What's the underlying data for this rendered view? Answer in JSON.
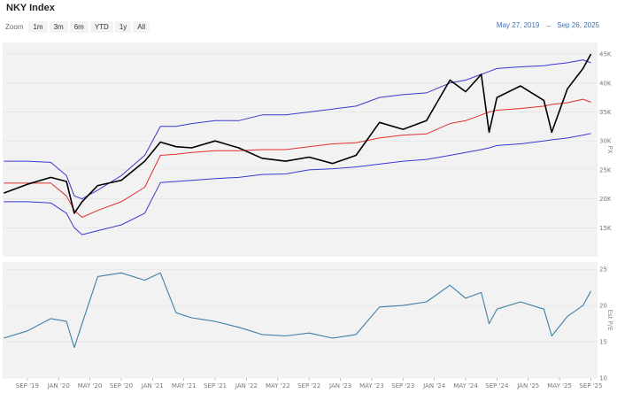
{
  "header": {
    "title": "NKY Index",
    "zoom_label": "Zoom",
    "zoom_buttons": [
      "1m",
      "3m",
      "6m",
      "YTD",
      "1y",
      "All"
    ],
    "range_start": "May 27, 2019",
    "range_arrow": "→",
    "range_end": "Sep 26, 2025"
  },
  "colors": {
    "price": "#000000",
    "median": "#e03030",
    "bands": "#3a3ad0",
    "pe": "#3d7fa6",
    "panel_bg": "#f2f2f2",
    "grid": "#e2e2e2"
  },
  "chart_data": [
    {
      "type": "line",
      "ylabel": "PX",
      "yticks": [
        "15K",
        "20K",
        "25K",
        "30K",
        "35K",
        "40K",
        "45K"
      ],
      "ylim": [
        10000,
        47000
      ],
      "x": [
        "2019-06",
        "2019-09",
        "2019-12",
        "2020-02",
        "2020-03",
        "2020-04",
        "2020-06",
        "2020-09",
        "2020-12",
        "2021-02",
        "2021-04",
        "2021-06",
        "2021-09",
        "2021-12",
        "2022-03",
        "2022-06",
        "2022-09",
        "2022-12",
        "2023-03",
        "2023-06",
        "2023-09",
        "2023-12",
        "2024-03",
        "2024-05",
        "2024-07",
        "2024-08",
        "2024-09",
        "2024-12",
        "2025-03",
        "2025-04",
        "2025-06",
        "2025-08",
        "2025-09"
      ],
      "series": [
        {
          "values": [
            21000,
            22500,
            23700,
            23000,
            17500,
            19500,
            22300,
            23200,
            26500,
            29800,
            29000,
            28800,
            30000,
            28800,
            27000,
            26500,
            27200,
            26100,
            27500,
            33200,
            32000,
            33500,
            40500,
            38500,
            41500,
            31500,
            37500,
            39500,
            37000,
            31500,
            39000,
            42500,
            45000
          ]
        },
        {
          "values": [
            22700,
            22700,
            22700,
            20500,
            18000,
            16800,
            18000,
            19500,
            22000,
            27500,
            27700,
            28000,
            28300,
            28300,
            28500,
            28500,
            29000,
            29500,
            29700,
            30500,
            31000,
            31200,
            33000,
            33500,
            34500,
            35000,
            35300,
            35600,
            36000,
            36300,
            36600,
            37200,
            36700
          ]
        },
        {
          "values": [
            26500,
            26500,
            26300,
            24000,
            20500,
            20000,
            21500,
            24000,
            27500,
            32500,
            32500,
            33000,
            33500,
            33500,
            34500,
            34500,
            35000,
            35500,
            36000,
            37500,
            38000,
            38300,
            40000,
            40500,
            41500,
            42000,
            42500,
            42800,
            43000,
            43200,
            43500,
            44000,
            43500
          ]
        },
        {
          "values": [
            19500,
            19500,
            19300,
            17500,
            15000,
            13800,
            14500,
            15500,
            17500,
            22800,
            23000,
            23200,
            23500,
            23700,
            24200,
            24300,
            25000,
            25200,
            25500,
            26000,
            26500,
            26800,
            27500,
            28000,
            28500,
            28800,
            29200,
            29500,
            30000,
            30200,
            30500,
            31000,
            31300
          ]
        }
      ]
    },
    {
      "type": "line",
      "ylabel": "Est P/E",
      "yticks": [
        "10",
        "15",
        "20",
        "25"
      ],
      "ylim": [
        10,
        26
      ],
      "xticks": [
        "SEP '19",
        "JAN '20",
        "MAY '20",
        "SEP '20",
        "JAN '21",
        "MAY '21",
        "SEP '21",
        "JAN '22",
        "MAY '22",
        "SEP '22",
        "JAN '23",
        "MAY '23",
        "SEP '23",
        "JAN '24",
        "MAY '24",
        "SEP '24",
        "JAN '25",
        "MAY '25",
        "SEP '25"
      ],
      "x": [
        "2019-06",
        "2019-09",
        "2019-12",
        "2020-02",
        "2020-03",
        "2020-04",
        "2020-06",
        "2020-09",
        "2020-12",
        "2021-02",
        "2021-04",
        "2021-06",
        "2021-09",
        "2021-12",
        "2022-03",
        "2022-06",
        "2022-09",
        "2022-12",
        "2023-03",
        "2023-06",
        "2023-09",
        "2023-12",
        "2024-03",
        "2024-05",
        "2024-07",
        "2024-08",
        "2024-09",
        "2024-12",
        "2025-03",
        "2025-04",
        "2025-06",
        "2025-08",
        "2025-09"
      ],
      "series": [
        {
          "values": [
            15.5,
            16.5,
            18.2,
            17.8,
            14.2,
            17.5,
            24.0,
            24.5,
            23.5,
            24.5,
            19.0,
            18.3,
            17.8,
            17.0,
            16.0,
            15.8,
            16.2,
            15.5,
            16.0,
            19.8,
            20.0,
            20.5,
            22.8,
            21.0,
            21.8,
            17.5,
            19.5,
            20.5,
            19.5,
            15.8,
            18.5,
            20.0,
            22.0
          ]
        }
      ]
    }
  ]
}
